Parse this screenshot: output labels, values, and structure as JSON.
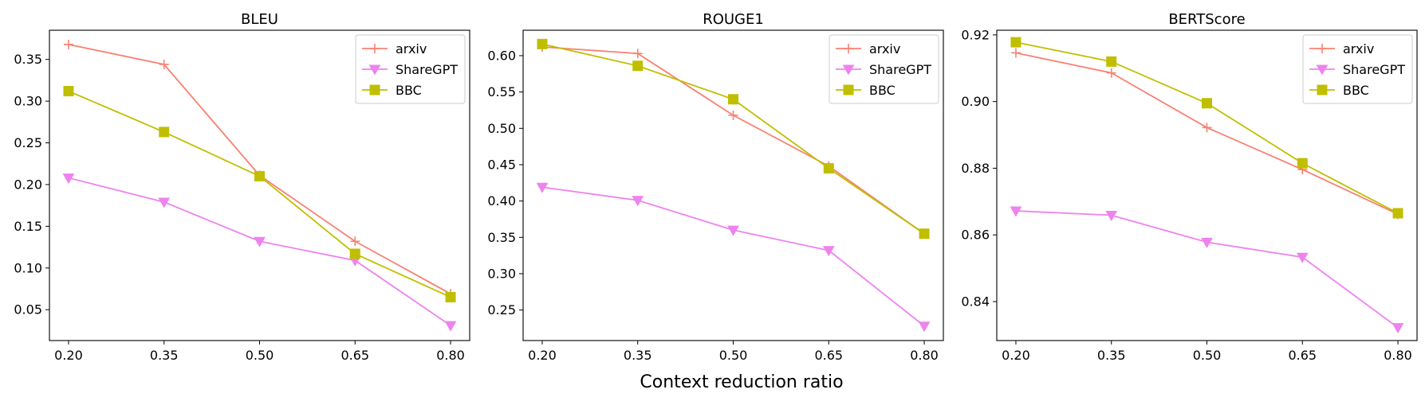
{
  "figure": {
    "shared_xlabel": "Context reduction ratio"
  },
  "series_styles": [
    {
      "name": "arxiv",
      "color": "#fa8072",
      "marker": "plus"
    },
    {
      "name": "ShareGPT",
      "color": "#ee82ee",
      "marker": "triangle-down"
    },
    {
      "name": "BBC",
      "color": "#bfbf00",
      "marker": "square"
    }
  ],
  "chart_data": [
    {
      "type": "line",
      "title": "BLEU",
      "xlabel": "",
      "ylabel": "",
      "x": [
        0.2,
        0.35,
        0.5,
        0.65,
        0.8
      ],
      "x_tick_labels": [
        "0.20",
        "0.35",
        "0.50",
        "0.65",
        "0.80"
      ],
      "xlim": [
        0.17,
        0.83
      ],
      "ylim": [
        0.013,
        0.385
      ],
      "y_ticks": [
        0.05,
        0.1,
        0.15,
        0.2,
        0.25,
        0.3,
        0.35
      ],
      "y_tick_labels": [
        "0.05",
        "0.10",
        "0.15",
        "0.20",
        "0.25",
        "0.30",
        "0.35"
      ],
      "grid": false,
      "legend": "top-right",
      "series": [
        {
          "name": "arxiv",
          "values": [
            0.368,
            0.344,
            0.211,
            0.132,
            0.069
          ]
        },
        {
          "name": "ShareGPT",
          "values": [
            0.208,
            0.179,
            0.132,
            0.109,
            0.031
          ]
        },
        {
          "name": "BBC",
          "values": [
            0.312,
            0.263,
            0.21,
            0.117,
            0.065
          ]
        }
      ]
    },
    {
      "type": "line",
      "title": "ROUGE1",
      "xlabel": "",
      "ylabel": "",
      "x": [
        0.2,
        0.35,
        0.5,
        0.65,
        0.8
      ],
      "x_tick_labels": [
        "0.20",
        "0.35",
        "0.50",
        "0.65",
        "0.80"
      ],
      "xlim": [
        0.17,
        0.83
      ],
      "ylim": [
        0.208,
        0.635
      ],
      "y_ticks": [
        0.25,
        0.3,
        0.35,
        0.4,
        0.45,
        0.5,
        0.55,
        0.6
      ],
      "y_tick_labels": [
        "0.25",
        "0.30",
        "0.35",
        "0.40",
        "0.45",
        "0.50",
        "0.55",
        "0.60"
      ],
      "grid": false,
      "legend": "top-right",
      "series": [
        {
          "name": "arxiv",
          "values": [
            0.612,
            0.603,
            0.518,
            0.448,
            0.355
          ]
        },
        {
          "name": "ShareGPT",
          "values": [
            0.419,
            0.401,
            0.36,
            0.332,
            0.228
          ]
        },
        {
          "name": "BBC",
          "values": [
            0.616,
            0.586,
            0.54,
            0.445,
            0.355
          ]
        }
      ]
    },
    {
      "type": "line",
      "title": "BERTScore",
      "xlabel": "",
      "ylabel": "",
      "x": [
        0.2,
        0.35,
        0.5,
        0.65,
        0.8
      ],
      "x_tick_labels": [
        "0.20",
        "0.35",
        "0.50",
        "0.65",
        "0.80"
      ],
      "xlim": [
        0.17,
        0.83
      ],
      "ylim": [
        0.8283,
        0.9214
      ],
      "y_ticks": [
        0.84,
        0.86,
        0.88,
        0.9,
        0.92
      ],
      "y_tick_labels": [
        "0.84",
        "0.86",
        "0.88",
        "0.90",
        "0.92"
      ],
      "grid": false,
      "legend": "top-right",
      "series": [
        {
          "name": "arxiv",
          "values": [
            0.9146,
            0.9086,
            0.8922,
            0.8796,
            0.8662
          ]
        },
        {
          "name": "ShareGPT",
          "values": [
            0.8672,
            0.8659,
            0.8578,
            0.8533,
            0.8322
          ]
        },
        {
          "name": "BBC",
          "values": [
            0.9178,
            0.912,
            0.8995,
            0.8815,
            0.8665
          ]
        }
      ]
    }
  ]
}
